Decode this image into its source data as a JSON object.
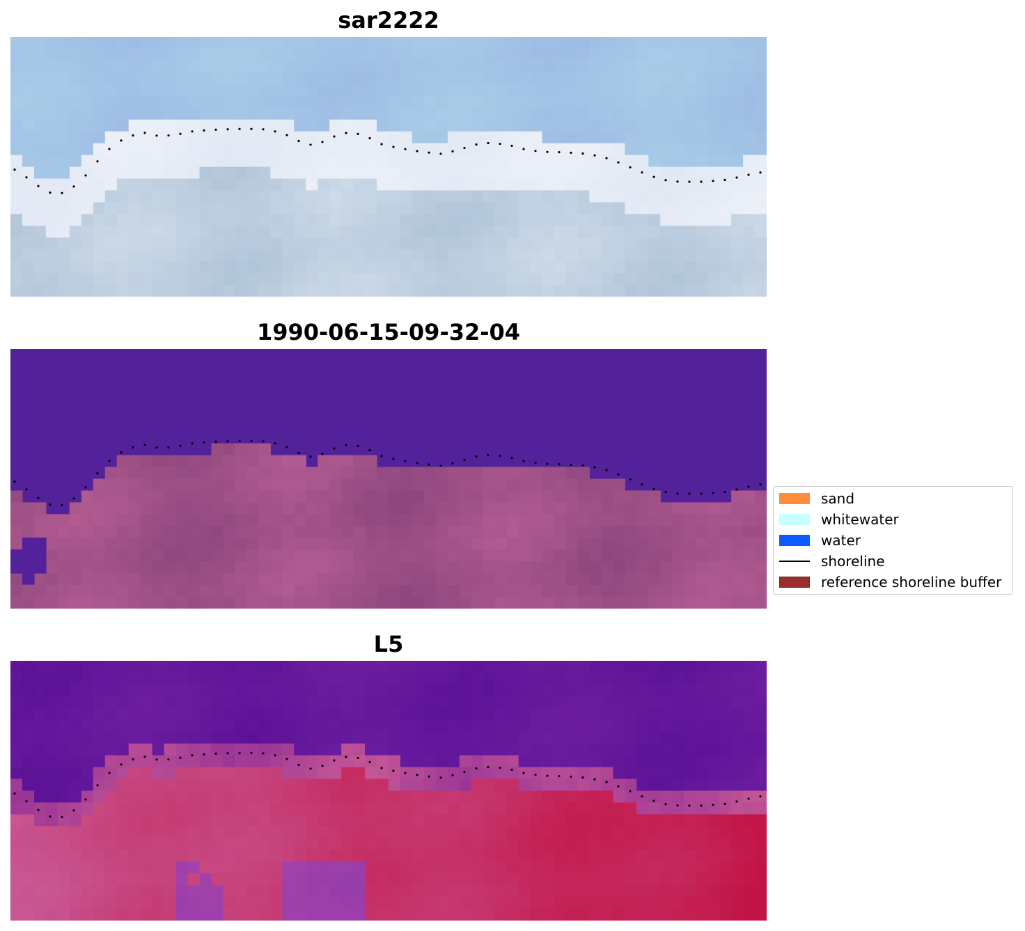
{
  "panels": [
    {
      "title": "sar2222"
    },
    {
      "title": "1990-06-15-09-32-04"
    },
    {
      "title": "L5"
    }
  ],
  "legend": {
    "items": [
      {
        "label": "sand",
        "kind": "patch",
        "color": "#ff8c3a"
      },
      {
        "label": "whitewater",
        "kind": "patch",
        "color": "#c8ffff"
      },
      {
        "label": "water",
        "kind": "patch",
        "color": "#0b5cff"
      },
      {
        "label": "shoreline",
        "kind": "line",
        "color": "#000000"
      },
      {
        "label": "reference shoreline buffer",
        "kind": "patch",
        "color": "#9a2e2e",
        "edge": "#7a1e1e"
      }
    ]
  },
  "colors": {
    "sky_blue": "#a6c3e6",
    "pale": "#dfe8f1",
    "water_purple": "#53229a",
    "sand_pink": "#ad5a8f",
    "deep_purple": "#5c1296",
    "crimson": "#c31d4c"
  }
}
